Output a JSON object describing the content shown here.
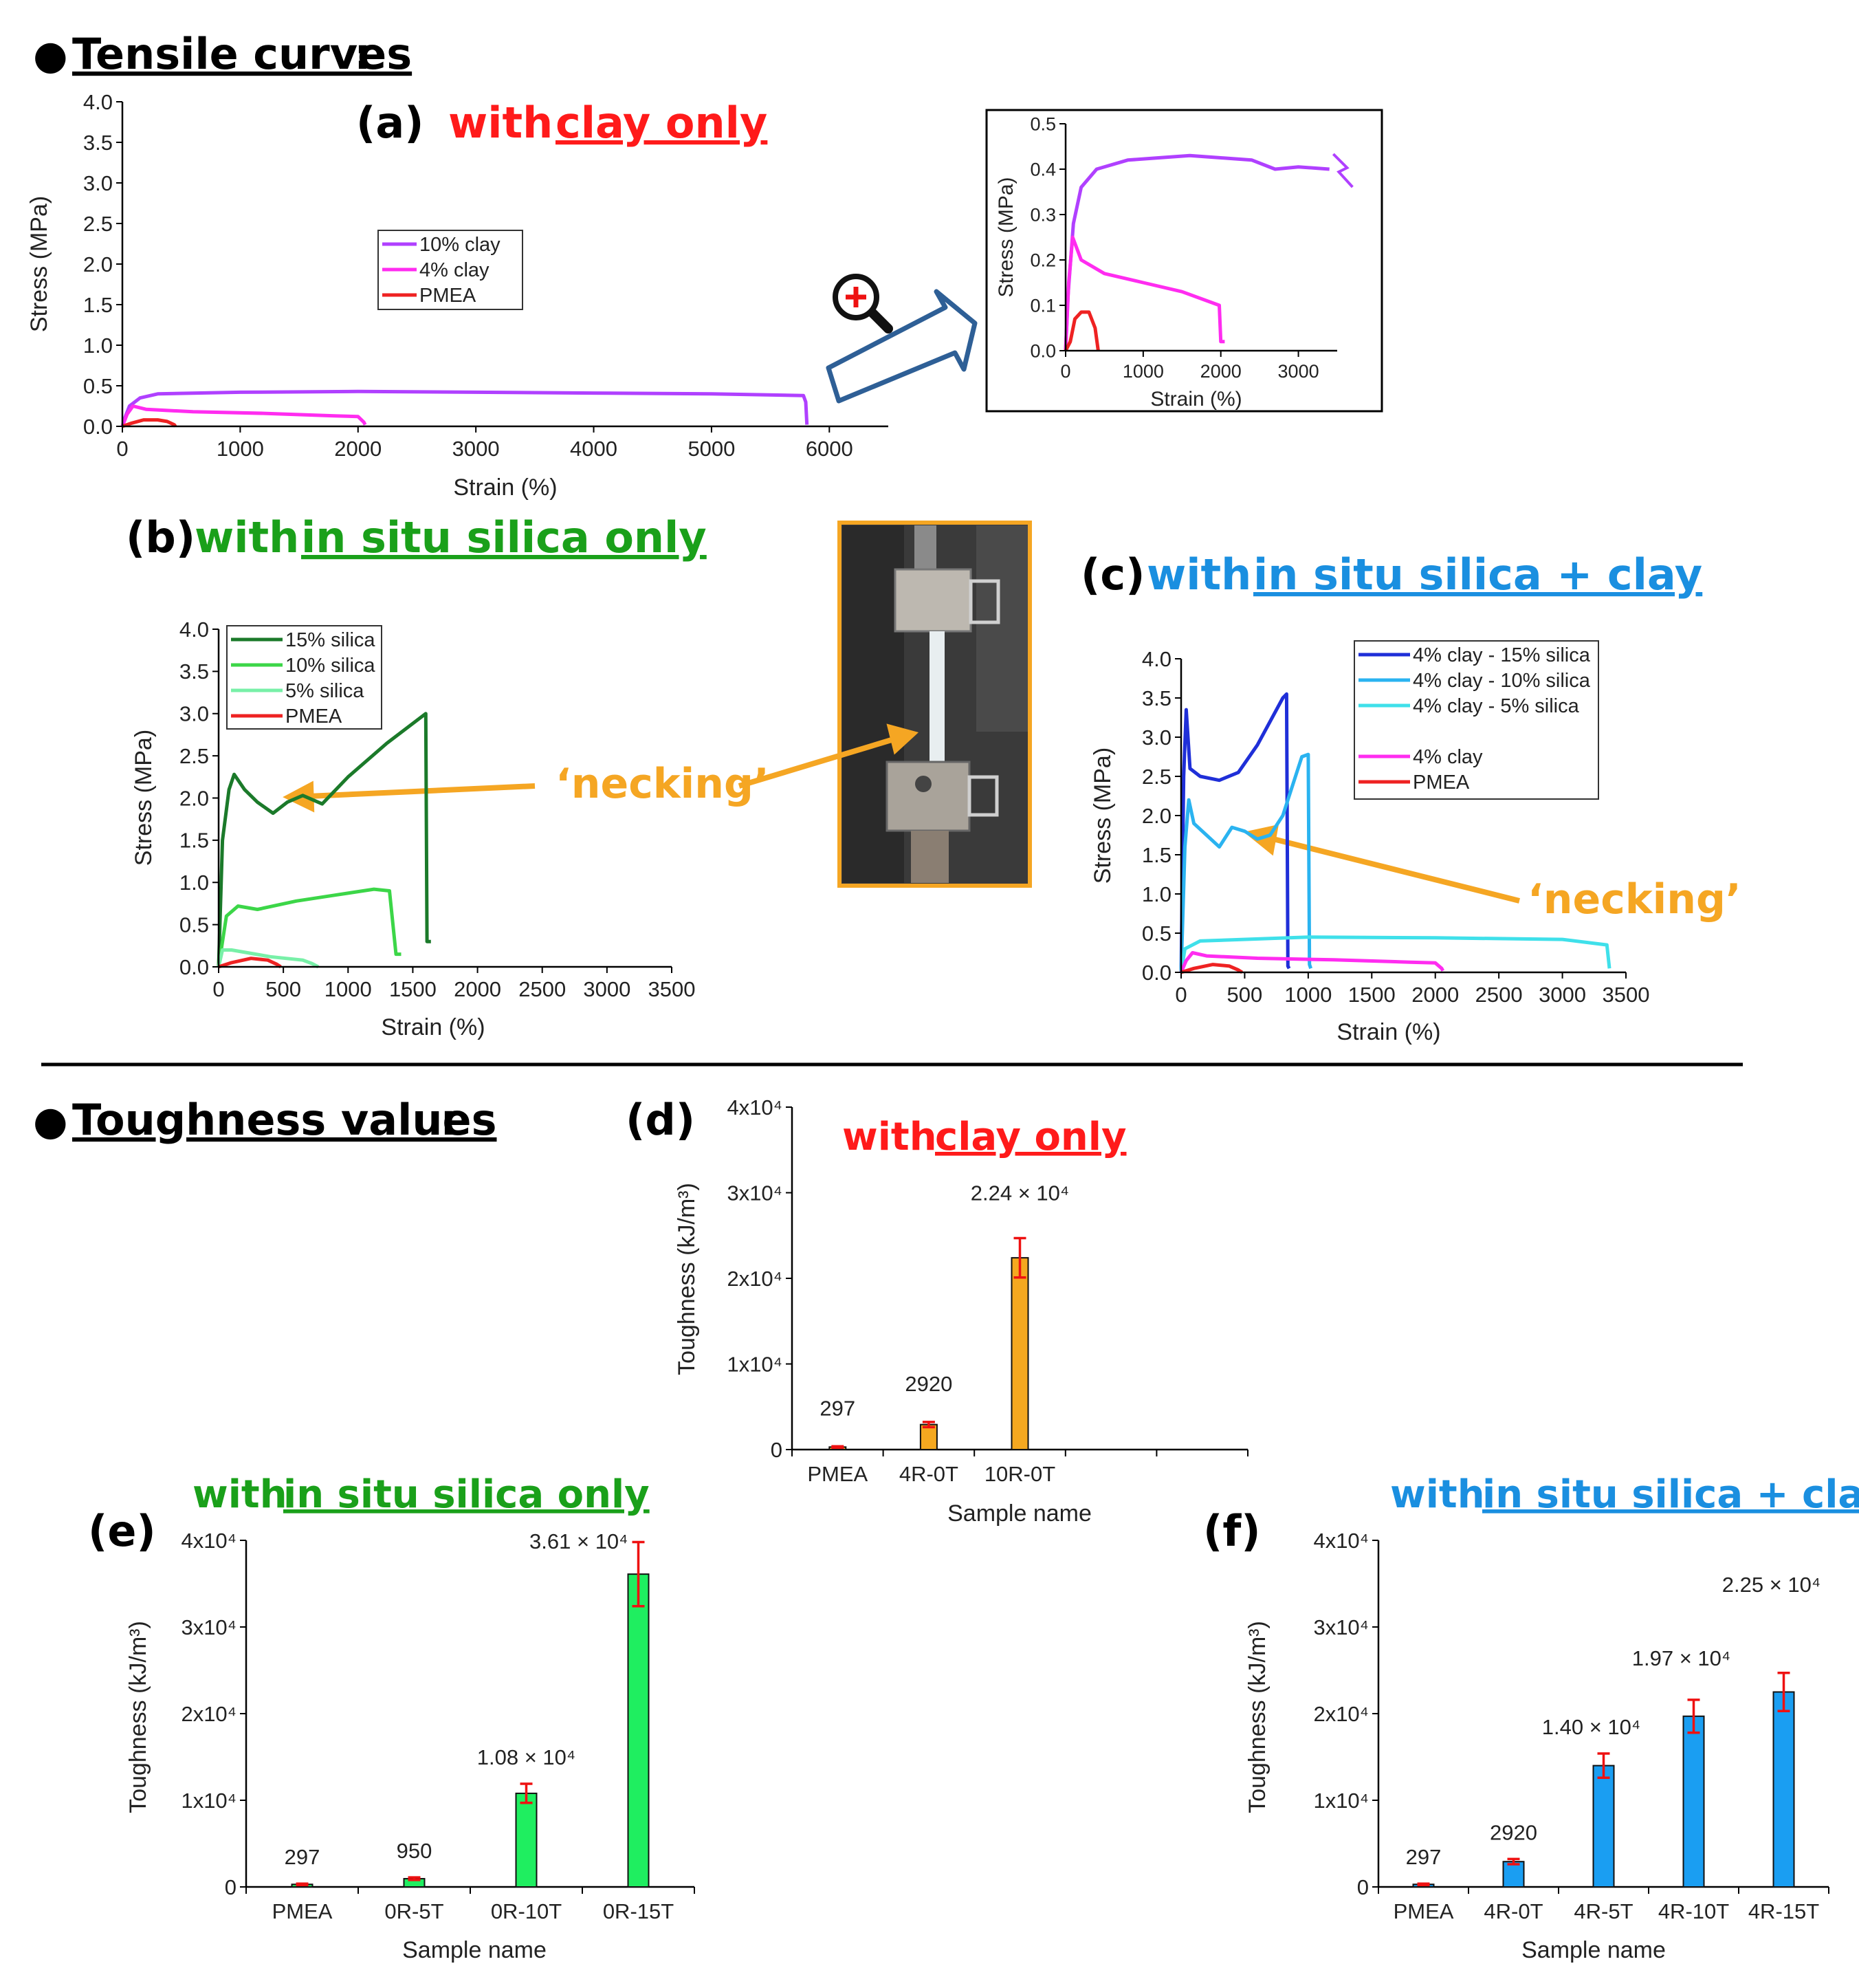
{
  "headers": {
    "bullet": "●",
    "tensile": "Tensile curves",
    "toughness": "Toughness values",
    "colon": ":"
  },
  "titles": {
    "a_label": "(a)",
    "a_with": "with",
    "a_und": "clay only",
    "b_label": "(b)",
    "b_with": "with",
    "b_und": "in situ silica only",
    "c_label": "(c)",
    "c_with": "with",
    "c_und": "in situ silica + clay",
    "d_label": "(d)",
    "d_with": "with",
    "d_und": "clay only",
    "e_label": "(e)",
    "e_with": "with",
    "e_und": "in situ silica only",
    "f_label": "(f)",
    "f_with": "with",
    "f_und": "in situ silica + clay"
  },
  "annotations": {
    "necking": "‘necking’"
  },
  "colors": {
    "red": "#ff1a1a",
    "green": "#1aa01a",
    "blue": "#1a8fe0",
    "orange": "#f5a623",
    "arrow_blue": "#2e5f96",
    "purple": "#b040ff",
    "magenta": "#ff2cf0",
    "pmea": "#ee2222",
    "dgreen": "#1b7a2a",
    "mgreen": "#3cd648",
    "lgreen": "#78f0a8",
    "navy": "#1f2fd8",
    "sky": "#2ab3f0",
    "cyan": "#3fe0ea",
    "bar_d": "#f5a820",
    "bar_e": "#1fee60",
    "bar_f": "#1a9ef2",
    "err": "#ee1111"
  },
  "chart_data": [
    {
      "id": "a",
      "type": "line",
      "xlabel": "Strain (%)",
      "ylabel": "Stress (MPa)",
      "xlim": [
        0,
        6500
      ],
      "ylim": [
        0,
        4.0
      ],
      "xticks": [
        0,
        1000,
        2000,
        3000,
        4000,
        5000,
        6000
      ],
      "yticks": [
        0.0,
        0.5,
        1.0,
        1.5,
        2.0,
        2.5,
        3.0,
        3.5,
        4.0
      ],
      "legend_position": "center-left",
      "series": [
        {
          "name": "10% clay",
          "color": "#b040ff",
          "points": [
            [
              0,
              0
            ],
            [
              20,
              0.1
            ],
            [
              60,
              0.25
            ],
            [
              150,
              0.35
            ],
            [
              300,
              0.4
            ],
            [
              1000,
              0.42
            ],
            [
              2000,
              0.43
            ],
            [
              3000,
              0.42
            ],
            [
              4000,
              0.41
            ],
            [
              5000,
              0.4
            ],
            [
              5780,
              0.38
            ],
            [
              5800,
              0.3
            ],
            [
              5810,
              0.02
            ]
          ]
        },
        {
          "name": "4% clay",
          "color": "#ff2cf0",
          "points": [
            [
              0,
              0
            ],
            [
              40,
              0.15
            ],
            [
              90,
              0.25
            ],
            [
              200,
              0.21
            ],
            [
              600,
              0.18
            ],
            [
              1200,
              0.16
            ],
            [
              1800,
              0.13
            ],
            [
              2000,
              0.12
            ],
            [
              2050,
              0.05
            ],
            [
              2060,
              0.02
            ]
          ]
        },
        {
          "name": "PMEA",
          "color": "#ee2222",
          "points": [
            [
              0,
              0
            ],
            [
              80,
              0.04
            ],
            [
              180,
              0.08
            ],
            [
              300,
              0.08
            ],
            [
              380,
              0.06
            ],
            [
              440,
              0.02
            ],
            [
              450,
              0.0
            ]
          ]
        }
      ]
    },
    {
      "id": "a_zoom",
      "type": "line",
      "xlabel": "Strain (%)",
      "ylabel": "Stress (MPa)",
      "xlim": [
        0,
        3500
      ],
      "ylim": [
        0,
        0.5
      ],
      "xticks": [
        0,
        1000,
        2000,
        3000
      ],
      "yticks": [
        0.0,
        0.1,
        0.2,
        0.3,
        0.4,
        0.5
      ],
      "series": [
        {
          "name": "10% clay",
          "color": "#b040ff",
          "points": [
            [
              0,
              0
            ],
            [
              30,
              0.12
            ],
            [
              100,
              0.28
            ],
            [
              200,
              0.36
            ],
            [
              400,
              0.4
            ],
            [
              800,
              0.42
            ],
            [
              1200,
              0.425
            ],
            [
              1600,
              0.43
            ],
            [
              2000,
              0.425
            ],
            [
              2400,
              0.42
            ],
            [
              2700,
              0.4
            ],
            [
              3000,
              0.405
            ],
            [
              3400,
              0.4
            ]
          ]
        },
        {
          "name": "4% clay",
          "color": "#ff2cf0",
          "points": [
            [
              0,
              0
            ],
            [
              40,
              0.15
            ],
            [
              90,
              0.25
            ],
            [
              200,
              0.2
            ],
            [
              500,
              0.17
            ],
            [
              1000,
              0.15
            ],
            [
              1500,
              0.13
            ],
            [
              1980,
              0.1
            ],
            [
              2000,
              0.02
            ],
            [
              2050,
              0.02
            ]
          ]
        },
        {
          "name": "PMEA",
          "color": "#ee2222",
          "points": [
            [
              0,
              0
            ],
            [
              60,
              0.02
            ],
            [
              120,
              0.07
            ],
            [
              200,
              0.085
            ],
            [
              300,
              0.085
            ],
            [
              380,
              0.05
            ],
            [
              420,
              0.0
            ]
          ]
        }
      ]
    },
    {
      "id": "b",
      "type": "line",
      "xlabel": "Strain (%)",
      "ylabel": "Stress (MPa)",
      "xlim": [
        0,
        3500
      ],
      "ylim": [
        0,
        4.0
      ],
      "xticks": [
        0,
        500,
        1000,
        1500,
        2000,
        2500,
        3000,
        3500
      ],
      "yticks": [
        0.0,
        0.5,
        1.0,
        1.5,
        2.0,
        2.5,
        3.0,
        3.5,
        4.0
      ],
      "legend_position": "top-left",
      "series": [
        {
          "name": "15% silica",
          "color": "#1b7a2a",
          "points": [
            [
              0,
              0
            ],
            [
              30,
              1.5
            ],
            [
              80,
              2.1
            ],
            [
              120,
              2.28
            ],
            [
              200,
              2.1
            ],
            [
              300,
              1.95
            ],
            [
              420,
              1.82
            ],
            [
              530,
              1.95
            ],
            [
              650,
              2.03
            ],
            [
              800,
              1.93
            ],
            [
              1000,
              2.25
            ],
            [
              1300,
              2.65
            ],
            [
              1600,
              3.0
            ],
            [
              1610,
              0.3
            ],
            [
              1640,
              0.3
            ]
          ]
        },
        {
          "name": "10% silica",
          "color": "#3cd648",
          "points": [
            [
              0,
              0
            ],
            [
              60,
              0.6
            ],
            [
              150,
              0.72
            ],
            [
              300,
              0.68
            ],
            [
              600,
              0.78
            ],
            [
              900,
              0.85
            ],
            [
              1200,
              0.92
            ],
            [
              1320,
              0.9
            ],
            [
              1370,
              0.15
            ],
            [
              1410,
              0.15
            ]
          ]
        },
        {
          "name": "5% silica",
          "color": "#78f0a8",
          "points": [
            [
              0,
              0
            ],
            [
              30,
              0.2
            ],
            [
              100,
              0.2
            ],
            [
              400,
              0.12
            ],
            [
              650,
              0.08
            ],
            [
              720,
              0.04
            ],
            [
              770,
              0.0
            ]
          ]
        },
        {
          "name": "PMEA",
          "color": "#ee2222",
          "points": [
            [
              0,
              0
            ],
            [
              100,
              0.05
            ],
            [
              250,
              0.1
            ],
            [
              380,
              0.08
            ],
            [
              450,
              0.03
            ],
            [
              480,
              0.0
            ]
          ]
        }
      ]
    },
    {
      "id": "c",
      "type": "line",
      "xlabel": "Strain (%)",
      "ylabel": "Stress (MPa)",
      "xlim": [
        0,
        3500
      ],
      "ylim": [
        0,
        4.0
      ],
      "xticks": [
        0,
        500,
        1000,
        1500,
        2000,
        2500,
        3000,
        3500
      ],
      "yticks": [
        0.0,
        0.5,
        1.0,
        1.5,
        2.0,
        2.5,
        3.0,
        3.5,
        4.0
      ],
      "legend_position": "top-right",
      "series": [
        {
          "name": "4% clay - 15% silica",
          "color": "#1f2fd8",
          "points": [
            [
              0,
              0
            ],
            [
              20,
              2.5
            ],
            [
              40,
              3.35
            ],
            [
              70,
              2.6
            ],
            [
              150,
              2.5
            ],
            [
              300,
              2.45
            ],
            [
              450,
              2.55
            ],
            [
              600,
              2.9
            ],
            [
              800,
              3.5
            ],
            [
              830,
              3.55
            ],
            [
              840,
              0.08
            ],
            [
              850,
              0.05
            ]
          ]
        },
        {
          "name": "4% clay - 10% silica",
          "color": "#2ab3f0",
          "points": [
            [
              0,
              0
            ],
            [
              30,
              1.6
            ],
            [
              60,
              2.2
            ],
            [
              100,
              1.9
            ],
            [
              200,
              1.75
            ],
            [
              300,
              1.6
            ],
            [
              400,
              1.85
            ],
            [
              500,
              1.8
            ],
            [
              600,
              1.7
            ],
            [
              700,
              1.75
            ],
            [
              800,
              2.0
            ],
            [
              950,
              2.75
            ],
            [
              1000,
              2.78
            ],
            [
              1010,
              0.1
            ],
            [
              1020,
              0.05
            ]
          ]
        },
        {
          "name": "4% clay - 5% silica",
          "color": "#3fe0ea",
          "points": [
            [
              0,
              0
            ],
            [
              30,
              0.3
            ],
            [
              150,
              0.4
            ],
            [
              1000,
              0.45
            ],
            [
              2000,
              0.44
            ],
            [
              3000,
              0.42
            ],
            [
              3350,
              0.35
            ],
            [
              3370,
              0.05
            ]
          ]
        },
        {
          "name": "4% clay",
          "color": "#ff2cf0",
          "points": [
            [
              0,
              0
            ],
            [
              40,
              0.15
            ],
            [
              90,
              0.25
            ],
            [
              200,
              0.21
            ],
            [
              600,
              0.18
            ],
            [
              1200,
              0.16
            ],
            [
              1800,
              0.13
            ],
            [
              2000,
              0.12
            ],
            [
              2050,
              0.05
            ],
            [
              2060,
              0.02
            ]
          ]
        },
        {
          "name": "PMEA",
          "color": "#ee2222",
          "points": [
            [
              0,
              0
            ],
            [
              100,
              0.05
            ],
            [
              250,
              0.1
            ],
            [
              380,
              0.08
            ],
            [
              450,
              0.03
            ],
            [
              480,
              0.0
            ]
          ]
        }
      ]
    },
    {
      "id": "d",
      "type": "bar",
      "title": "with clay only",
      "xlabel": "Sample name",
      "ylabel": "Toughness (kJ/m³)",
      "ylim": [
        0,
        40000
      ],
      "ytick_labels": [
        "0",
        "1x10⁴",
        "2x10⁴",
        "3x10⁴",
        "4x10⁴"
      ],
      "categories": [
        "PMEA",
        "4R-0T",
        "10R-0T"
      ],
      "values": [
        297,
        2920,
        22400
      ],
      "errors": [
        80,
        300,
        2300
      ],
      "labels": [
        "297",
        "2920",
        "2.24 × 10⁴"
      ]
    },
    {
      "id": "e",
      "type": "bar",
      "title": "with in situ silica only",
      "xlabel": "Sample name",
      "ylabel": "Toughness (kJ/m³)",
      "ylim": [
        0,
        40000
      ],
      "ytick_labels": [
        "0",
        "1x10⁴",
        "2x10⁴",
        "3x10⁴",
        "4x10⁴"
      ],
      "categories": [
        "PMEA",
        "0R-5T",
        "0R-10T",
        "0R-15T"
      ],
      "values": [
        297,
        950,
        10800,
        36100
      ],
      "errors": [
        80,
        150,
        1100,
        3700
      ],
      "labels": [
        "297",
        "950",
        "1.08 × 10⁴",
        "3.61 × 10⁴"
      ]
    },
    {
      "id": "f",
      "type": "bar",
      "title": "with in situ silica + clay",
      "xlabel": "Sample name",
      "ylabel": "Toughness (kJ/m³)",
      "ylim": [
        0,
        40000
      ],
      "ytick_labels": [
        "0",
        "1x10⁴",
        "2x10⁴",
        "3x10⁴",
        "4x10⁴"
      ],
      "categories": [
        "PMEA",
        "4R-0T",
        "4R-5T",
        "4R-10T",
        "4R-15T"
      ],
      "values": [
        297,
        2920,
        14000,
        19700,
        22500
      ],
      "errors": [
        80,
        300,
        1400,
        1900,
        2200
      ],
      "labels": [
        "297",
        "2920",
        "1.40 × 10⁴",
        "1.97 × 10⁴",
        "2.25 × 10⁴"
      ]
    }
  ]
}
